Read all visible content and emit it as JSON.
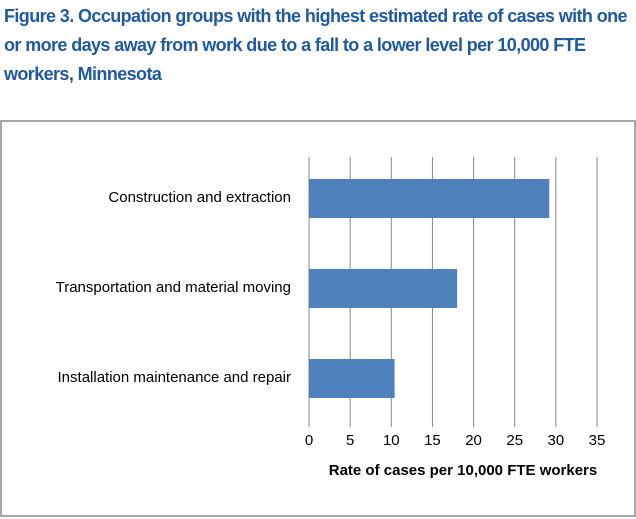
{
  "chart_data": {
    "type": "bar",
    "orientation": "horizontal",
    "title": "Figure 3. Occupation groups with the highest estimated rate of cases with one or more days away from work due to a fall to a lower level per 10,000 FTE workers, Minnesota",
    "categories": [
      "Construction and extraction",
      "Transportation and material moving",
      "Installation maintenance and repair"
    ],
    "values": [
      29.2,
      18,
      10.4
    ],
    "color": "#4f81bd",
    "xlabel": "Rate of cases per 10,000 FTE workers",
    "xlim": [
      0,
      35
    ],
    "xticks": [
      0,
      5,
      10,
      15,
      20,
      25,
      30,
      35
    ],
    "grid": true
  }
}
